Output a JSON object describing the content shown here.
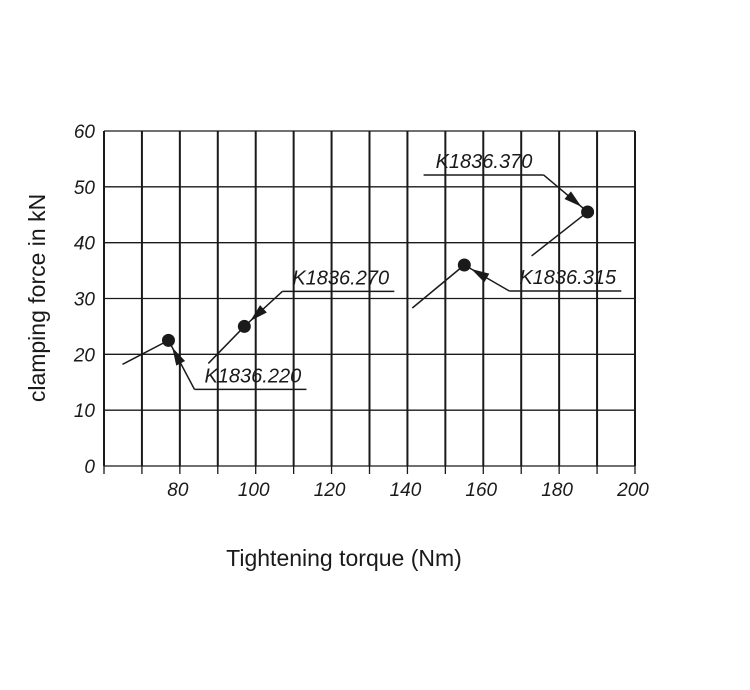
{
  "chart_data": {
    "type": "scatter",
    "xlabel": "Tightening torque (Nm)",
    "ylabel": "clamping force in kN",
    "xlim": [
      60,
      200
    ],
    "ylim": [
      0,
      60
    ],
    "x_ticks": [
      80,
      100,
      120,
      140,
      160,
      180,
      200
    ],
    "y_ticks": [
      0,
      10,
      20,
      30,
      40,
      50,
      60
    ],
    "grid": true,
    "point_color": "#1a1a1a",
    "points": [
      {
        "label": "K1836.220",
        "x": 77,
        "y": 22.5
      },
      {
        "label": "K1836.270",
        "x": 97,
        "y": 25
      },
      {
        "label": "K1836.315",
        "x": 155,
        "y": 36
      },
      {
        "label": "K1836.370",
        "x": 187.5,
        "y": 45.5
      }
    ]
  }
}
